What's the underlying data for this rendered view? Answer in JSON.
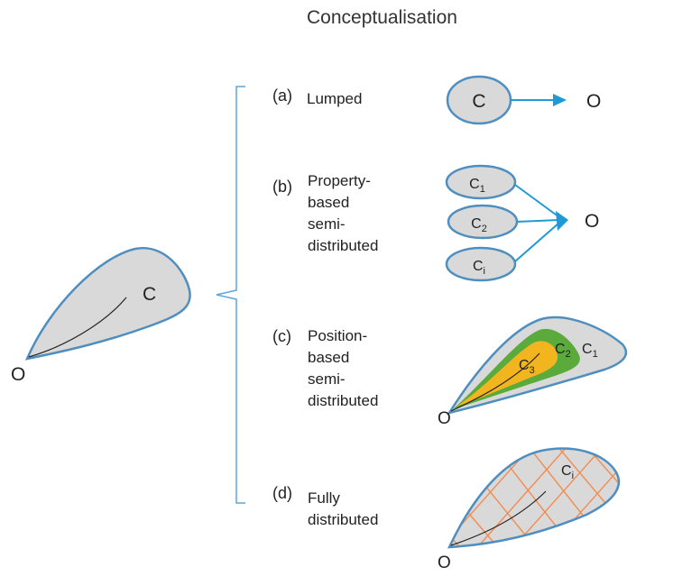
{
  "title": "Conceptualisation",
  "catchment": {
    "catchment_label": "C",
    "outlet_label": "O"
  },
  "options": [
    {
      "letter": "(a)",
      "name": "Lumped"
    },
    {
      "letter": "(b)",
      "name": "Property-\nbased\nsemi-\ndistributed"
    },
    {
      "letter": "(c)",
      "name": "Position-\nbased\nsemi-\ndistributed"
    },
    {
      "letter": "(d)",
      "name": "Fully\ndistributed"
    }
  ],
  "lumped": {
    "unit": "C",
    "outlet": "O"
  },
  "property": {
    "units": [
      {
        "base": "C",
        "sub": "1"
      },
      {
        "base": "C",
        "sub": "2"
      },
      {
        "base": "C",
        "sub": "i"
      }
    ],
    "outlet": "O"
  },
  "position": {
    "zones": [
      {
        "base": "C",
        "sub": "1"
      },
      {
        "base": "C",
        "sub": "2"
      },
      {
        "base": "C",
        "sub": "3"
      }
    ],
    "outlet": "O"
  },
  "fully": {
    "cell": {
      "base": "C",
      "sub": "i"
    },
    "outlet": "O"
  },
  "colors": {
    "catchment_fill": "#d9d9d9",
    "outline": "#4f8fc0",
    "arrow": "#1f9ad6",
    "bracket": "#5aa5dc",
    "zone_green": "#5aab3c",
    "zone_yellow": "#f2b51f",
    "grid": "#f28b4f"
  }
}
